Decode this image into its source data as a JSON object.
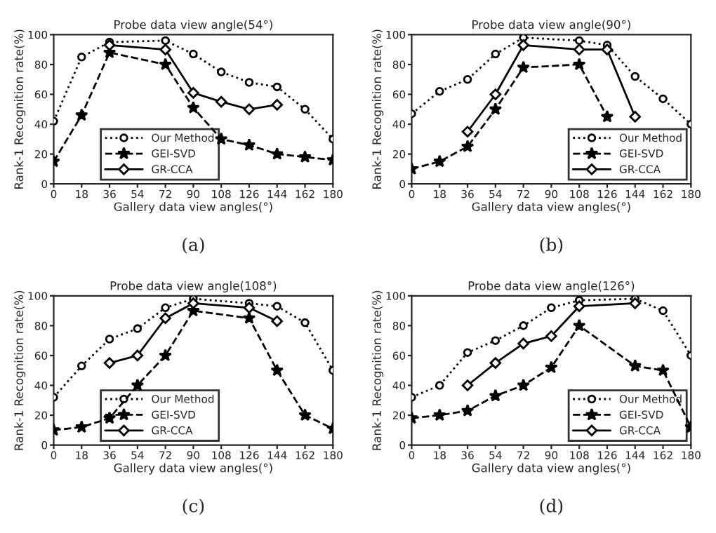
{
  "chart_data": [
    {
      "type": "line",
      "title": "Probe data view angle(54°)",
      "xlabel": "Gallery data view angles(°)",
      "ylabel": "Rank-1 Recognition rate(%)",
      "xlim": [
        0,
        180
      ],
      "ylim": [
        0,
        100
      ],
      "xticks": [
        0,
        18,
        36,
        54,
        72,
        90,
        108,
        126,
        144,
        162,
        180
      ],
      "yticks": [
        0,
        20,
        40,
        60,
        80,
        100
      ],
      "grid": false,
      "legend": "bottom",
      "annotations": [
        "(a)"
      ],
      "series": [
        {
          "name": "Our Method",
          "color": "#000000",
          "marker": "circle",
          "line_style": "dotted",
          "x": [
            0,
            18,
            36,
            72,
            90,
            108,
            126,
            144,
            162,
            180
          ],
          "values": [
            42,
            85,
            95,
            96,
            87,
            75,
            68,
            65,
            50,
            30
          ]
        },
        {
          "name": "GEI-SVD",
          "color": "#000000",
          "marker": "star",
          "line_style": "dashed",
          "x": [
            0,
            18,
            36,
            72,
            90,
            108,
            126,
            144,
            162,
            180
          ],
          "values": [
            15,
            46,
            88,
            80,
            51,
            30,
            26,
            20,
            18,
            16
          ]
        },
        {
          "name": "GR-CCA",
          "color": "#000000",
          "marker": "diamond",
          "line_style": "solid",
          "x": [
            36,
            72,
            90,
            108,
            126,
            144
          ],
          "values": [
            93,
            90,
            61,
            55,
            50,
            53
          ]
        }
      ]
    },
    {
      "type": "line",
      "title": "Probe data view angle(90°)",
      "xlabel": "Gallery data view angles(°)",
      "ylabel": "Rank-1 Recognition rate(%)",
      "xlim": [
        0,
        180
      ],
      "ylim": [
        0,
        100
      ],
      "xticks": [
        0,
        18,
        36,
        54,
        72,
        90,
        108,
        126,
        144,
        162,
        180
      ],
      "yticks": [
        0,
        20,
        40,
        60,
        80,
        100
      ],
      "grid": false,
      "legend": "bottom right",
      "annotations": [
        "(b)"
      ],
      "series": [
        {
          "name": "Our Method",
          "color": "#000000",
          "marker": "circle",
          "line_style": "dotted",
          "x": [
            0,
            18,
            36,
            54,
            72,
            108,
            126,
            144,
            162,
            180
          ],
          "values": [
            47,
            62,
            70,
            87,
            98,
            96,
            93,
            72,
            57,
            40
          ]
        },
        {
          "name": "GEI-SVD",
          "color": "#000000",
          "marker": "star",
          "line_style": "dashed",
          "x": [
            0,
            18,
            36,
            54,
            72,
            108,
            126
          ],
          "values": [
            10,
            15,
            25,
            50,
            78,
            80,
            45
          ]
        },
        {
          "name": "GR-CCA",
          "color": "#000000",
          "marker": "diamond",
          "line_style": "solid",
          "x": [
            36,
            54,
            72,
            108,
            126,
            144
          ],
          "values": [
            35,
            60,
            93,
            90,
            90,
            45
          ]
        }
      ]
    },
    {
      "type": "line",
      "title": "Probe data view angle(108°)",
      "xlabel": "Gallery data view angles(°)",
      "ylabel": "Rank-1 Recognition rate(%)",
      "xlim": [
        0,
        180
      ],
      "ylim": [
        0,
        100
      ],
      "xticks": [
        0,
        18,
        36,
        54,
        72,
        90,
        108,
        126,
        144,
        162,
        180
      ],
      "yticks": [
        0,
        20,
        40,
        60,
        80,
        100
      ],
      "grid": false,
      "legend": "bottom",
      "annotations": [
        "(c)"
      ],
      "series": [
        {
          "name": "Our Method",
          "color": "#000000",
          "marker": "circle",
          "line_style": "dotted",
          "x": [
            0,
            18,
            36,
            54,
            72,
            90,
            126,
            144,
            162,
            180
          ],
          "values": [
            32,
            53,
            71,
            78,
            92,
            98,
            95,
            93,
            82,
            50
          ]
        },
        {
          "name": "GEI-SVD",
          "color": "#000000",
          "marker": "star",
          "line_style": "dashed",
          "x": [
            0,
            18,
            36,
            54,
            72,
            90,
            126,
            144,
            162,
            180
          ],
          "values": [
            10,
            12,
            18,
            40,
            60,
            90,
            85,
            50,
            20,
            11
          ]
        },
        {
          "name": "GR-CCA",
          "color": "#000000",
          "marker": "diamond",
          "line_style": "solid",
          "x": [
            36,
            54,
            72,
            90,
            126,
            144
          ],
          "values": [
            55,
            60,
            85,
            95,
            92,
            83
          ]
        }
      ]
    },
    {
      "type": "line",
      "title": "Probe data view angle(126°)",
      "xlabel": "Gallery data view angles(°)",
      "ylabel": "Rank-1 Recognition rate(%)",
      "xlim": [
        0,
        180
      ],
      "ylim": [
        0,
        100
      ],
      "xticks": [
        0,
        18,
        36,
        54,
        72,
        90,
        108,
        126,
        144,
        162,
        180
      ],
      "yticks": [
        0,
        20,
        40,
        60,
        80,
        100
      ],
      "grid": false,
      "legend": "bottom right",
      "annotations": [
        "(d)"
      ],
      "series": [
        {
          "name": "Our Method",
          "color": "#000000",
          "marker": "circle",
          "line_style": "dotted",
          "x": [
            0,
            18,
            36,
            54,
            72,
            90,
            108,
            144,
            162,
            180
          ],
          "values": [
            32,
            40,
            62,
            70,
            80,
            92,
            97,
            98,
            90,
            60
          ]
        },
        {
          "name": "GEI-SVD",
          "color": "#000000",
          "marker": "star",
          "line_style": "dashed",
          "x": [
            0,
            18,
            36,
            54,
            72,
            90,
            108,
            144,
            162,
            180
          ],
          "values": [
            18,
            20,
            23,
            33,
            40,
            52,
            80,
            53,
            50,
            12
          ]
        },
        {
          "name": "GR-CCA",
          "color": "#000000",
          "marker": "diamond",
          "line_style": "solid",
          "x": [
            36,
            54,
            72,
            90,
            108,
            144
          ],
          "values": [
            40,
            55,
            68,
            73,
            93,
            95
          ]
        }
      ]
    }
  ]
}
